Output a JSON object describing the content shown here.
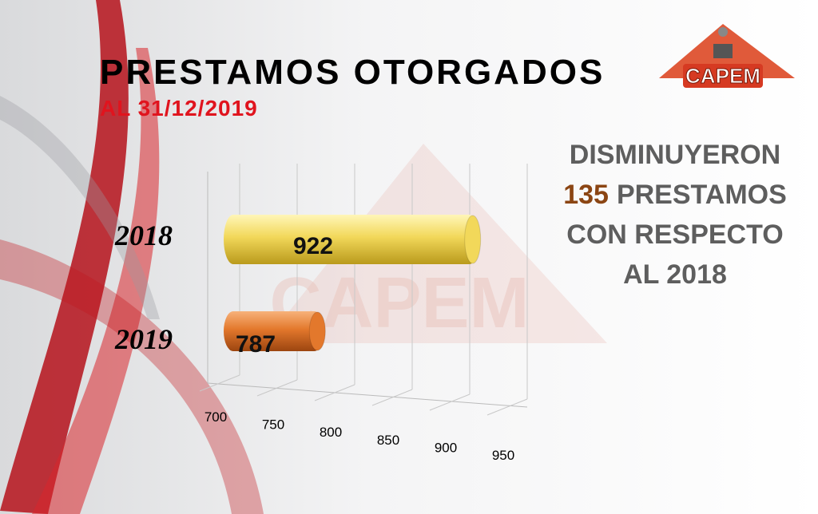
{
  "chart_data": {
    "type": "bar",
    "orientation": "horizontal",
    "title": "PRESTAMOS OTORGADOS",
    "subtitle": "AL 31/12/2019",
    "categories": [
      "2018",
      "2019"
    ],
    "values": [
      922,
      787
    ],
    "colors": [
      "#f2d85a",
      "#e3782c"
    ],
    "xlim": [
      700,
      950
    ],
    "xticks": [
      700,
      750,
      800,
      850,
      900,
      950
    ],
    "grid": true
  },
  "annotation": {
    "line1": "DISMINUYERON",
    "highlight": "135",
    "line2": "PRESTAMOS",
    "line3": "CON RESPECTO",
    "line4": "AL 2018"
  },
  "logo": "CAPEM"
}
